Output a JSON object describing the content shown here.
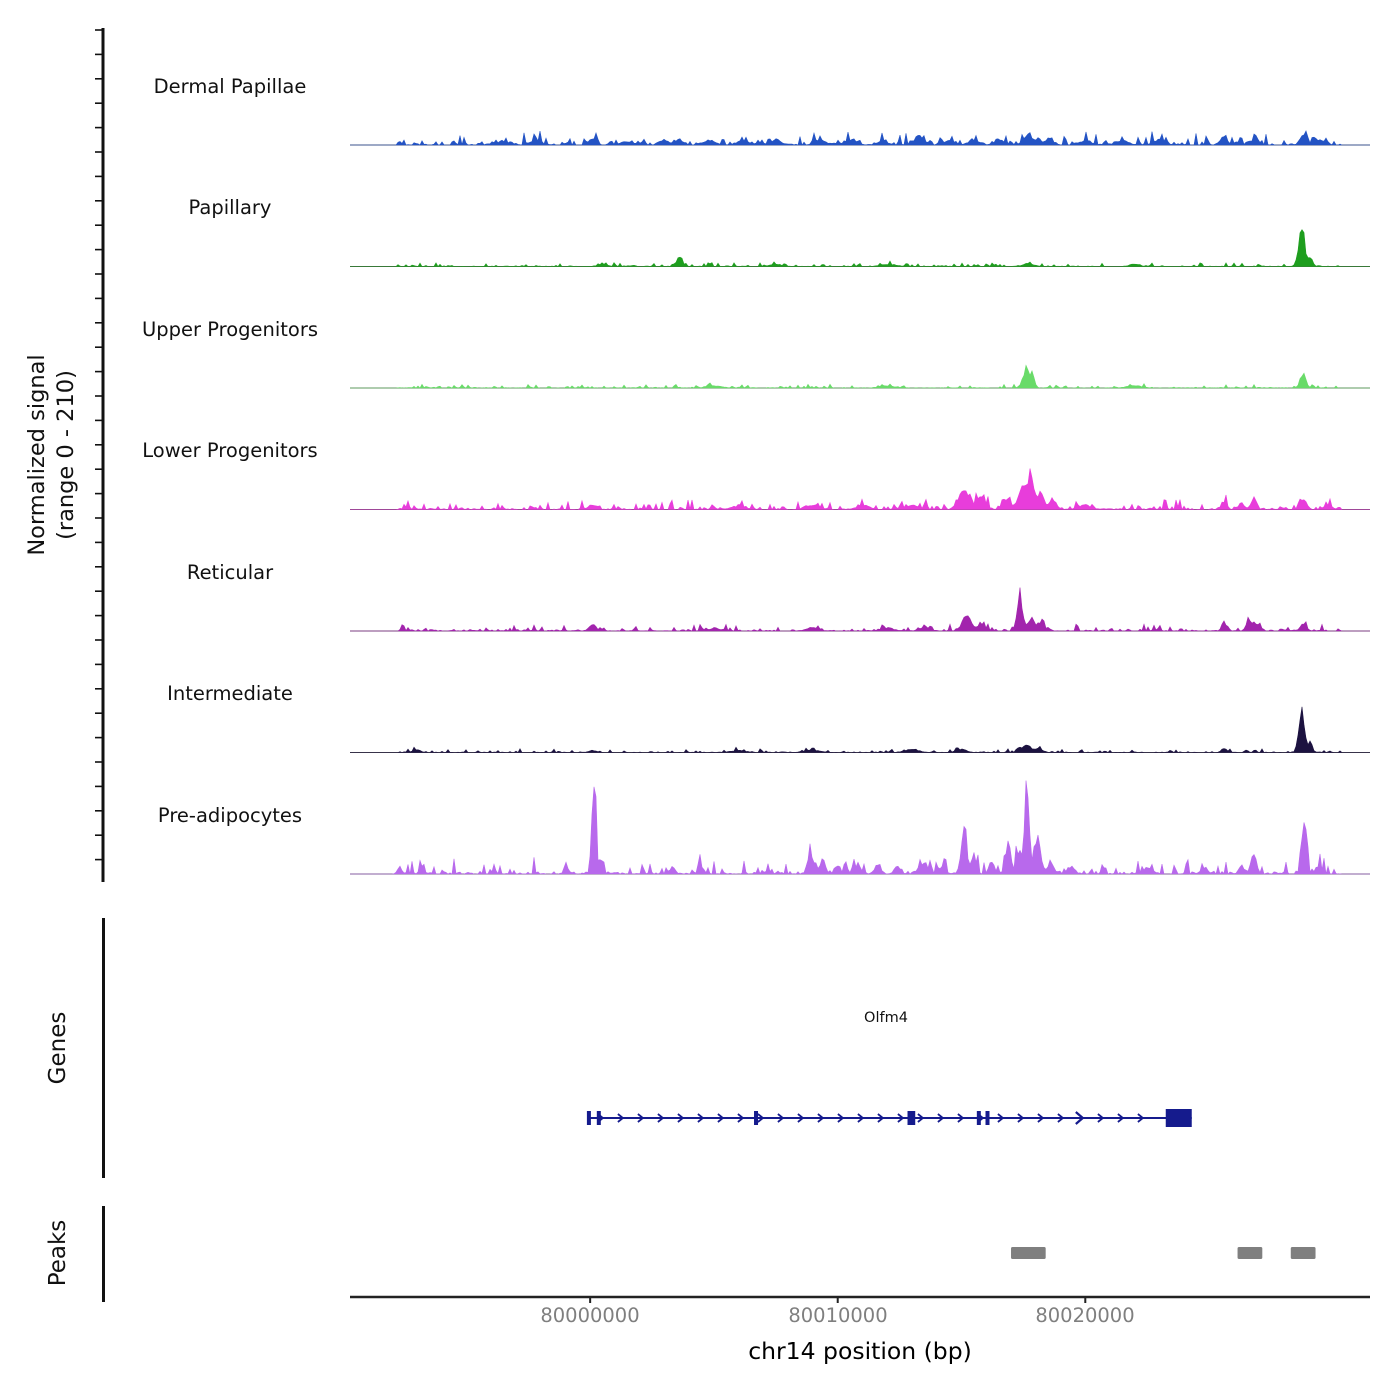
{
  "figure": {
    "ylabel_line1": "Normalized signal",
    "ylabel_line2": "(range 0 - 210)",
    "genes_section_label": "Genes",
    "peaks_section_label": "Peaks"
  },
  "chart_data": {
    "type": "area",
    "title": "",
    "xlabel": "chr14 position (bp)",
    "ylabel": "Normalized signal (range 0 - 210)",
    "x_range": [
      79990300,
      80031500
    ],
    "x_ticks": [
      80000000,
      80010000,
      80020000
    ],
    "x_tick_labels": [
      "80000000",
      "80010000",
      "80020000"
    ],
    "y_range_per_track": [
      0,
      210
    ],
    "legend": "none",
    "grid": false,
    "tracks": [
      {
        "name": "Dermal Papillae",
        "color": "#2353c4",
        "noise": 1.6,
        "peaks": [
          [
            79996500,
            3,
            300
          ],
          [
            79997800,
            4,
            200
          ],
          [
            80000100,
            6,
            120
          ],
          [
            80001500,
            3,
            300
          ],
          [
            80003000,
            4,
            200
          ],
          [
            80003600,
            5,
            150
          ],
          [
            80004800,
            4,
            250
          ],
          [
            80006200,
            4,
            250
          ],
          [
            80007500,
            5,
            200
          ],
          [
            80009300,
            5,
            200
          ],
          [
            80010500,
            4,
            250
          ],
          [
            80011800,
            4,
            200
          ],
          [
            80013300,
            8,
            180
          ],
          [
            80014500,
            4,
            200
          ],
          [
            80015500,
            5,
            200
          ],
          [
            80016500,
            4,
            200
          ],
          [
            80017700,
            9,
            200
          ],
          [
            80018500,
            5,
            200
          ],
          [
            80020000,
            4,
            250
          ],
          [
            80021500,
            4,
            250
          ],
          [
            80023000,
            4,
            250
          ],
          [
            80025600,
            8,
            130
          ],
          [
            80026700,
            4,
            150
          ],
          [
            80028800,
            10,
            130
          ],
          [
            80029500,
            4,
            150
          ]
        ]
      },
      {
        "name": "Papillary",
        "color": "#1e9e1e",
        "noise": 0.5,
        "peaks": [
          [
            80000500,
            2,
            200
          ],
          [
            80003600,
            12,
            100
          ],
          [
            80007500,
            2,
            250
          ],
          [
            80012000,
            2,
            250
          ],
          [
            80017700,
            3,
            200
          ],
          [
            80022000,
            2,
            200
          ],
          [
            80028750,
            36,
            120
          ],
          [
            80029100,
            8,
            90
          ]
        ]
      },
      {
        "name": "Upper Progenitors",
        "color": "#69db69",
        "noise": 0.5,
        "peaks": [
          [
            80005000,
            2,
            300
          ],
          [
            80012000,
            2,
            300
          ],
          [
            80017600,
            16,
            140
          ],
          [
            80017850,
            10,
            100
          ],
          [
            80022000,
            2,
            300
          ],
          [
            80028800,
            15,
            110
          ]
        ]
      },
      {
        "name": "Lower Progenitors",
        "color": "#e83ddb",
        "noise": 1.3,
        "peaks": [
          [
            80000100,
            5,
            150
          ],
          [
            80006000,
            3,
            300
          ],
          [
            80009000,
            4,
            250
          ],
          [
            80011000,
            4,
            250
          ],
          [
            80013000,
            4,
            250
          ],
          [
            80015100,
            16,
            200
          ],
          [
            80015800,
            12,
            180
          ],
          [
            80016800,
            10,
            150
          ],
          [
            80017450,
            26,
            140
          ],
          [
            80017800,
            30,
            130
          ],
          [
            80018200,
            16,
            130
          ],
          [
            80018700,
            8,
            150
          ],
          [
            80020000,
            4,
            250
          ],
          [
            80025600,
            8,
            110
          ],
          [
            80026300,
            6,
            120
          ],
          [
            80026800,
            11,
            110
          ],
          [
            80028800,
            9,
            130
          ],
          [
            80029800,
            4,
            150
          ]
        ]
      },
      {
        "name": "Reticular",
        "color": "#a224ad",
        "noise": 0.9,
        "peaks": [
          [
            80000100,
            6,
            130
          ],
          [
            80005000,
            2,
            300
          ],
          [
            80009000,
            3,
            250
          ],
          [
            80012000,
            3,
            250
          ],
          [
            80013500,
            3,
            200
          ],
          [
            80015200,
            15,
            170
          ],
          [
            80015800,
            8,
            150
          ],
          [
            80017350,
            36,
            110
          ],
          [
            80017800,
            13,
            130
          ],
          [
            80018200,
            9,
            130
          ],
          [
            80025600,
            10,
            90
          ],
          [
            80026600,
            11,
            100
          ],
          [
            80026950,
            7,
            90
          ],
          [
            80028800,
            8,
            110
          ]
        ]
      },
      {
        "name": "Intermediate",
        "color": "#1c1240",
        "noise": 0.5,
        "peaks": [
          [
            79993000,
            3,
            150
          ],
          [
            80000100,
            2,
            150
          ],
          [
            80006000,
            2,
            300
          ],
          [
            80009000,
            2,
            300
          ],
          [
            80013000,
            3,
            250
          ],
          [
            80015000,
            3,
            200
          ],
          [
            80017600,
            7,
            180
          ],
          [
            80018100,
            4,
            150
          ],
          [
            80025600,
            4,
            100
          ],
          [
            80028750,
            40,
            110
          ],
          [
            80029100,
            10,
            80
          ]
        ]
      },
      {
        "name": "Pre-adipocytes",
        "color": "#b869ec",
        "noise": 2.2,
        "peaks": [
          [
            79992300,
            7,
            90
          ],
          [
            79993200,
            8,
            90
          ],
          [
            79999050,
            5,
            100
          ],
          [
            80000150,
            96,
            80
          ],
          [
            80000450,
            14,
            80
          ],
          [
            80003300,
            6,
            120
          ],
          [
            80004500,
            8,
            100
          ],
          [
            80008900,
            22,
            110
          ],
          [
            80009400,
            16,
            100
          ],
          [
            80010000,
            7,
            120
          ],
          [
            80010800,
            9,
            120
          ],
          [
            80011600,
            8,
            120
          ],
          [
            80012400,
            7,
            120
          ],
          [
            80013400,
            9,
            150
          ],
          [
            80014200,
            7,
            120
          ],
          [
            80015100,
            50,
            110
          ],
          [
            80015500,
            18,
            100
          ],
          [
            80016200,
            12,
            100
          ],
          [
            80016900,
            28,
            100
          ],
          [
            80017300,
            20,
            100
          ],
          [
            80017650,
            90,
            95
          ],
          [
            80018100,
            36,
            100
          ],
          [
            80018600,
            12,
            120
          ],
          [
            80019400,
            6,
            150
          ],
          [
            80022500,
            5,
            200
          ],
          [
            80024800,
            5,
            150
          ],
          [
            80026300,
            8,
            100
          ],
          [
            80026800,
            20,
            100
          ],
          [
            80028830,
            46,
            100
          ],
          [
            80029400,
            8,
            100
          ]
        ]
      }
    ],
    "gene": {
      "name": "Olfm4",
      "color": "#151b8d",
      "start": 79999950,
      "end": 80024300,
      "strand": "+",
      "exon_ticks": [
        79999950,
        80000350,
        80006700,
        80012900,
        80013050,
        80015700,
        80016050
      ],
      "open_chevron": 80019900,
      "terminal_exon": [
        80023250,
        80024300
      ]
    },
    "peak_regions": {
      "color": "#7f7f7f",
      "regions": [
        [
          80017000,
          80018400
        ],
        [
          80026150,
          80027150
        ],
        [
          80028300,
          80029300
        ]
      ]
    }
  }
}
